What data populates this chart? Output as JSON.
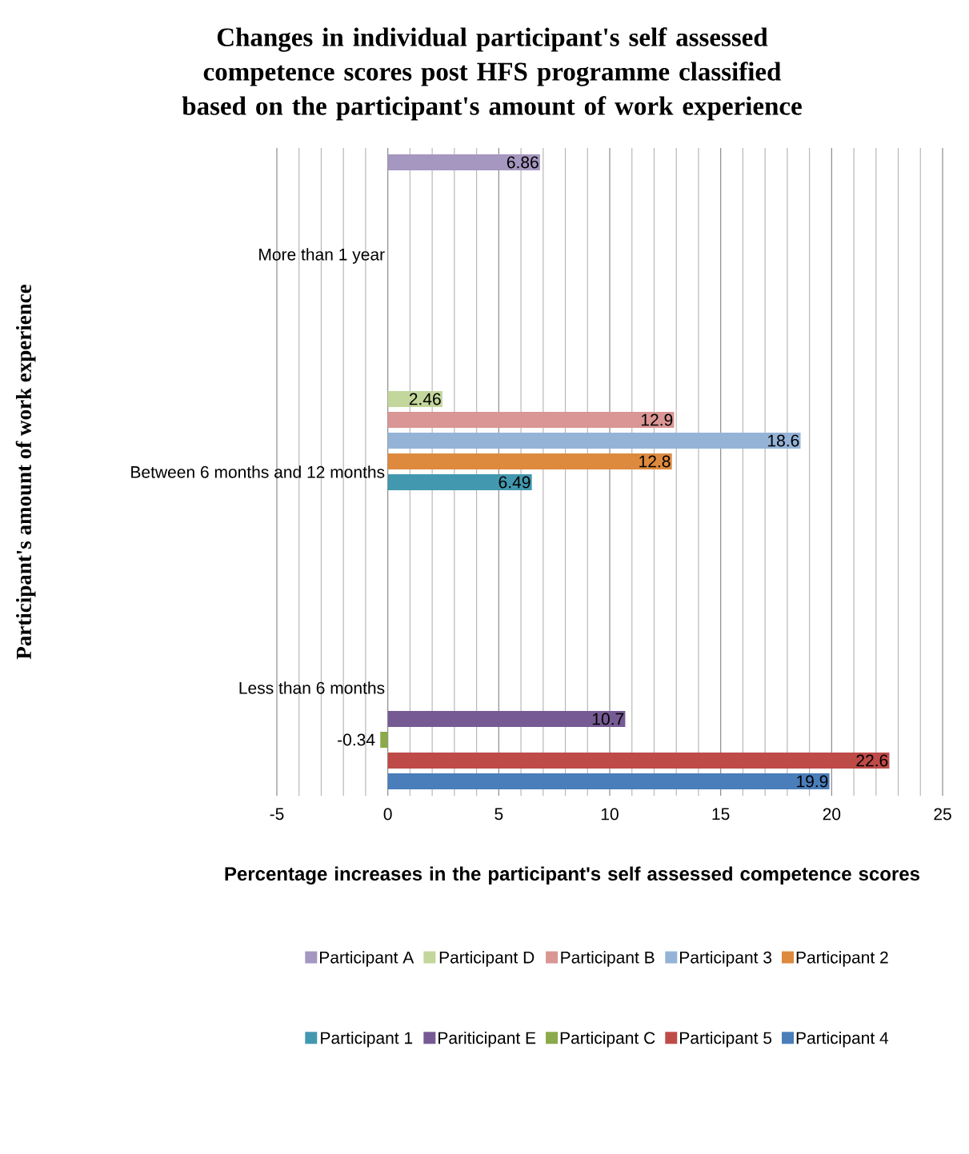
{
  "chart_data": {
    "type": "bar",
    "orientation": "horizontal",
    "title": "Changes in individual participant's self assessed competence scores post HFS programme classified based on the participant's amount of work experience",
    "xlabel": "Percentage increases in the participant's self assessed competence scores",
    "ylabel": "Participant's amount of work experience",
    "categories": [
      "More than 1 year",
      "Between 6 months and 12 months",
      "Less than 6 months"
    ],
    "xlim": [
      -5,
      25
    ],
    "xticks": [
      -5,
      0,
      5,
      10,
      15,
      20,
      25
    ],
    "grid": "x",
    "legend": "bottom",
    "data_labels": true,
    "series": [
      {
        "name": "Participant A",
        "color": "#a597c0",
        "values": [
          6.86,
          null,
          null
        ]
      },
      {
        "name": "Participant D",
        "color": "#c3d69b",
        "values": [
          null,
          2.46,
          null
        ]
      },
      {
        "name": "Participant B",
        "color": "#d99694",
        "values": [
          null,
          12.9,
          null
        ]
      },
      {
        "name": "Participant 3",
        "color": "#95b3d7",
        "values": [
          null,
          18.6,
          null
        ]
      },
      {
        "name": "Participant 2",
        "color": "#dd8a3e",
        "values": [
          null,
          12.8,
          null
        ]
      },
      {
        "name": "Participant 1",
        "color": "#4298af",
        "values": [
          null,
          6.49,
          null
        ]
      },
      {
        "name": "Pariticipant E",
        "color": "#765a94",
        "values": [
          null,
          null,
          10.7
        ]
      },
      {
        "name": "Participant C",
        "color": "#8aaa4b",
        "values": [
          null,
          null,
          -0.34
        ]
      },
      {
        "name": "Participant 5",
        "color": "#be4b48",
        "values": [
          null,
          null,
          22.6
        ]
      },
      {
        "name": "Participant 4",
        "color": "#4a7ebb",
        "values": [
          null,
          null,
          19.9
        ]
      }
    ]
  }
}
